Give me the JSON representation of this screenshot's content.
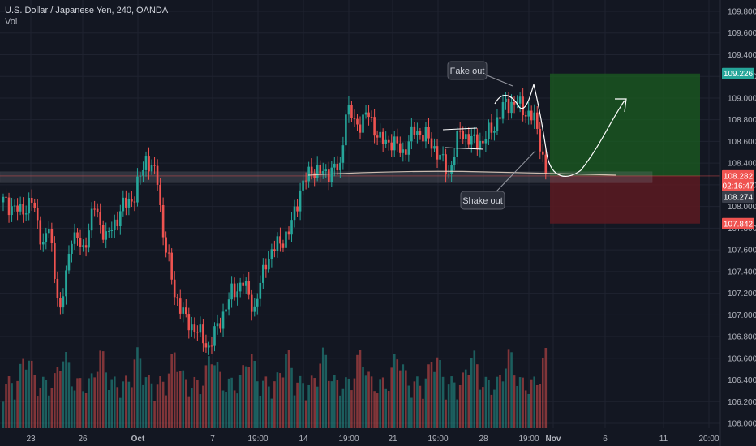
{
  "header": {
    "title": "U.S. Dollar / Japanese Yen, 240, OANDA",
    "volume_label": "Vol"
  },
  "chart_data": {
    "type": "candlestick",
    "symbol": "U.S. Dollar / Japanese Yen",
    "interval": "240",
    "source": "OANDA",
    "y_axis": {
      "ticks": [
        "109.800",
        "109.600",
        "109.400",
        "109.200",
        "109.000",
        "108.800",
        "108.600",
        "108.400",
        "108.200",
        "108.000",
        "107.800",
        "107.600",
        "107.400",
        "107.200",
        "107.000",
        "106.800",
        "106.600",
        "106.400",
        "106.200",
        "106.000"
      ],
      "ylim": [
        106.0,
        109.8
      ]
    },
    "x_axis": {
      "ticks": [
        "23",
        "26",
        "Oct",
        "7",
        "19:00",
        "14",
        "19:00",
        "21",
        "19:00",
        "28",
        "19:00",
        "Nov",
        "6",
        "11",
        "20:00"
      ]
    },
    "close_anchors": [
      [
        0,
        108.05
      ],
      [
        6,
        107.95
      ],
      [
        10,
        108.05
      ],
      [
        14,
        107.65
      ],
      [
        16,
        107.8
      ],
      [
        20,
        107.0
      ],
      [
        24,
        107.75
      ],
      [
        28,
        107.6
      ],
      [
        32,
        108.0
      ],
      [
        36,
        107.7
      ],
      [
        42,
        108.0
      ],
      [
        46,
        108.1
      ],
      [
        50,
        108.45
      ],
      [
        54,
        108.25
      ],
      [
        56,
        107.75
      ],
      [
        60,
        107.2
      ],
      [
        64,
        106.95
      ],
      [
        68,
        106.85
      ],
      [
        72,
        106.7
      ],
      [
        76,
        106.95
      ],
      [
        80,
        107.2
      ],
      [
        84,
        107.3
      ],
      [
        88,
        107.05
      ],
      [
        92,
        107.5
      ],
      [
        96,
        107.65
      ],
      [
        100,
        107.75
      ],
      [
        104,
        108.15
      ],
      [
        108,
        108.35
      ],
      [
        112,
        108.3
      ],
      [
        116,
        108.35
      ],
      [
        118,
        108.35
      ],
      [
        120,
        108.9
      ],
      [
        124,
        108.75
      ],
      [
        128,
        108.85
      ],
      [
        132,
        108.6
      ],
      [
        136,
        108.6
      ],
      [
        140,
        108.5
      ],
      [
        144,
        108.7
      ],
      [
        148,
        108.65
      ],
      [
        152,
        108.5
      ],
      [
        156,
        108.3
      ],
      [
        160,
        108.7
      ],
      [
        164,
        108.6
      ],
      [
        168,
        108.6
      ],
      [
        172,
        108.75
      ],
      [
        176,
        108.95
      ],
      [
        180,
        108.95
      ],
      [
        184,
        108.85
      ],
      [
        186,
        108.8
      ],
      [
        188,
        108.6
      ],
      [
        190,
        108.3
      ]
    ],
    "volume_range": [
      0.1,
      1.0
    ],
    "price_tags": [
      {
        "label": "109.226",
        "value": 109.226,
        "color": "#26a69a"
      },
      {
        "label": "108.282",
        "value": 108.282,
        "color": "#ef5350"
      },
      {
        "label": "02:16:47",
        "value": 108.2,
        "color": "#ef5350"
      },
      {
        "label": "108.274",
        "value": 108.274,
        "color": "#3a3e4a"
      },
      {
        "label": "107.842",
        "value": 107.842,
        "color": "#ef5350"
      }
    ],
    "position": {
      "entry": 108.282,
      "target": 109.226,
      "stop": 107.842,
      "profit_color": "#1b5e20",
      "loss_color": "#5c1a21"
    },
    "support_zone": [
      108.22,
      108.32
    ],
    "annotations": [
      {
        "text": "Fake out"
      },
      {
        "text": "Shake out"
      }
    ],
    "colors": {
      "up": "#26a69a",
      "down": "#ef5350",
      "background": "#131722",
      "grid": "#1f2330"
    }
  }
}
